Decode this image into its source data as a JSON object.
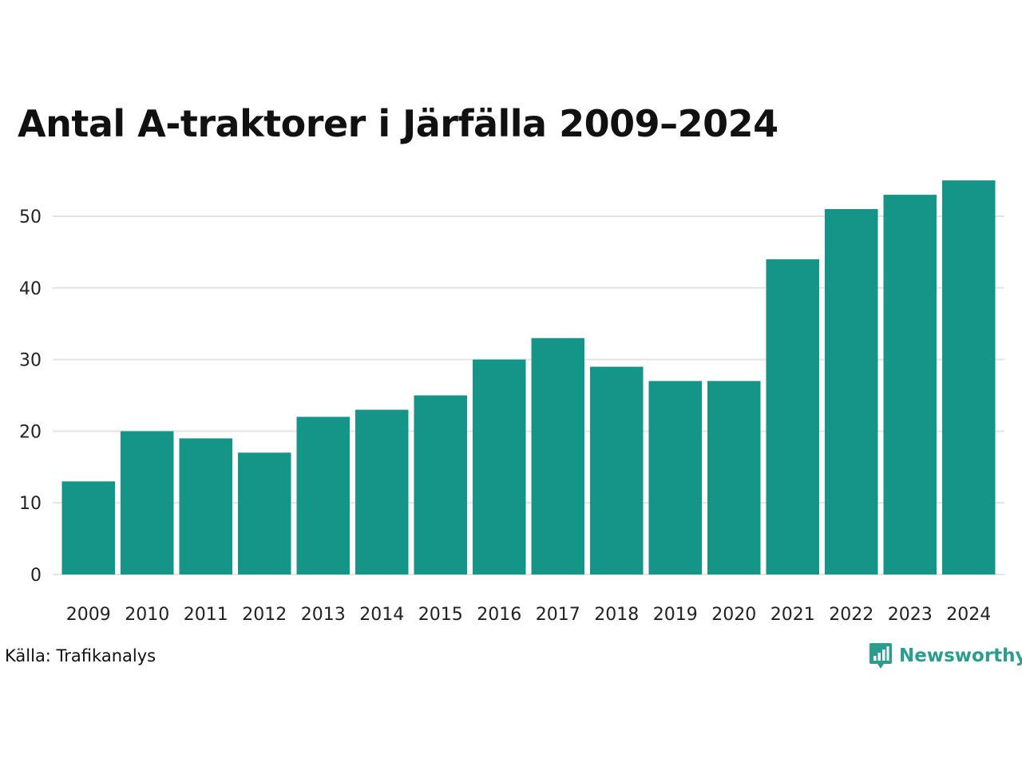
{
  "colors": {
    "bar": "#159587",
    "grid": "#e3e3e3",
    "text": "#111111",
    "brand": "#2a9d8f"
  },
  "chart_data": {
    "type": "bar",
    "title": "Antal A-traktorer i Järfälla 2009–2024",
    "xlabel": "",
    "ylabel": "",
    "categories": [
      "2009",
      "2010",
      "2011",
      "2012",
      "2013",
      "2014",
      "2015",
      "2016",
      "2017",
      "2018",
      "2019",
      "2020",
      "2021",
      "2022",
      "2023",
      "2024"
    ],
    "values": [
      13,
      20,
      19,
      17,
      22,
      23,
      25,
      30,
      33,
      29,
      27,
      27,
      44,
      51,
      53,
      55
    ],
    "ylim": [
      0,
      55
    ],
    "yticks": [
      0,
      10,
      20,
      30,
      40,
      50
    ],
    "grid": true,
    "legend": "none"
  },
  "footer": {
    "source": "Källa: Trafikanalys",
    "brand_name": "Newsworthy",
    "brand_icon": "newsworthy-chart-bubble-icon"
  }
}
